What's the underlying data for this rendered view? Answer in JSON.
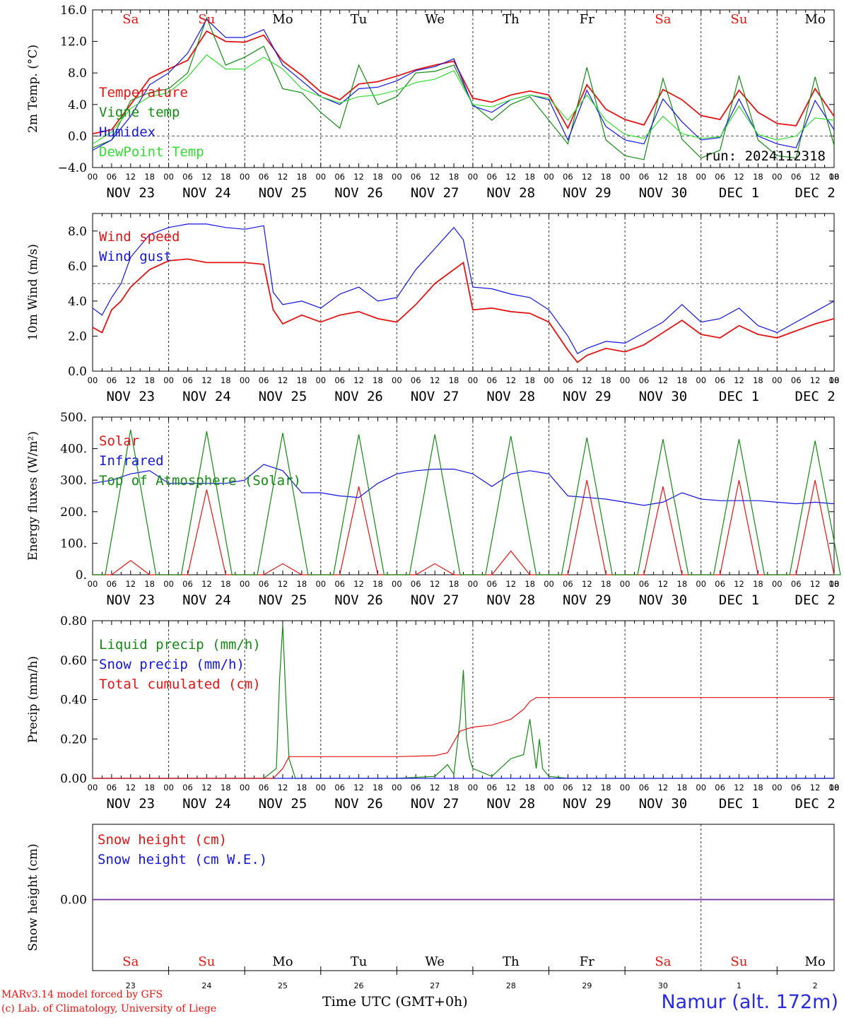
{
  "run_label": "run: 2024112318",
  "colors": {
    "red": "#e41414",
    "green": "#138a13",
    "blue": "#1414e4",
    "lime": "#33dd33",
    "purple": "#7030a0"
  },
  "days": [
    "Sa",
    "Su",
    "Mo",
    "Tu",
    "We",
    "Th",
    "Fr",
    "Sa",
    "Su",
    "Mo"
  ],
  "day_colors": [
    "#e41414",
    "#e41414",
    "#000000",
    "#000000",
    "#000000",
    "#000000",
    "#000000",
    "#e41414",
    "#e41414",
    "#000000"
  ],
  "dates": [
    "NOV 23",
    "NOV 24",
    "NOV 25",
    "NOV 26",
    "NOV 27",
    "NOV 28",
    "NOV 29",
    "NOV 30",
    "DEC  1",
    "DEC  2"
  ],
  "day_numbers": [
    "23",
    "24",
    "25",
    "26",
    "27",
    "28",
    "29",
    "30",
    "1",
    "2"
  ],
  "hour_ticks": [
    "00",
    "06",
    "12",
    "18"
  ],
  "footer": {
    "credit1": "MARv3.14 model forced by GFS",
    "credit2": "(c) Lab. of Climatology, University of Liege",
    "time_label": "Time UTC (GMT+0h)",
    "station": "Namur (alt. 172m)"
  },
  "chart_data": [
    {
      "type": "line",
      "ylabel": "2m Temp. (°C)",
      "ylim": [
        -4.0,
        16.0
      ],
      "yticks": [
        "16.0",
        "12.0",
        "8.0",
        "4.0",
        "0.0",
        "−4.0"
      ],
      "x_unit": "hours since NOV 23 00 UTC",
      "series": [
        {
          "name": "Temperature",
          "color": "#e41414",
          "x": [
            0,
            6,
            12,
            18,
            24,
            30,
            36,
            42,
            48,
            54,
            60,
            66,
            72,
            78,
            84,
            90,
            96,
            102,
            108,
            114,
            120,
            126,
            132,
            138,
            144,
            150,
            156,
            162,
            168,
            174,
            180,
            186,
            192,
            198,
            204,
            210,
            216,
            222,
            228,
            234
          ],
          "y": [
            0.3,
            0.8,
            4.0,
            7.3,
            8.5,
            9.6,
            13.3,
            12.0,
            11.9,
            12.8,
            9.5,
            7.7,
            5.6,
            4.6,
            6.6,
            6.9,
            7.6,
            8.4,
            9.0,
            9.5,
            4.8,
            4.3,
            5.2,
            5.7,
            5.2,
            1.0,
            6.5,
            3.4,
            2.1,
            1.4,
            5.9,
            4.6,
            2.6,
            2.1,
            5.8,
            3.0,
            1.6,
            1.3,
            6.0,
            2.5
          ]
        },
        {
          "name": "Vigne temp",
          "color": "#138a13",
          "x": [
            0,
            6,
            12,
            18,
            24,
            30,
            36,
            42,
            48,
            54,
            60,
            66,
            72,
            78,
            84,
            90,
            96,
            102,
            108,
            114,
            120,
            126,
            132,
            138,
            144,
            150,
            156,
            162,
            168,
            174,
            180,
            186,
            192,
            198,
            204,
            210,
            216,
            222,
            228,
            234
          ],
          "y": [
            -1.5,
            -0.5,
            4.5,
            5.5,
            6.0,
            8.0,
            15.0,
            9.0,
            10.0,
            11.4,
            6.0,
            5.5,
            3.0,
            1.0,
            9.0,
            4.0,
            5.0,
            8.0,
            8.2,
            9.0,
            4.0,
            2.0,
            4.0,
            5.0,
            2.0,
            -1.0,
            8.7,
            -0.5,
            -2.5,
            -3.0,
            7.3,
            -0.4,
            -2.8,
            -1.8,
            7.6,
            -0.5,
            -2.5,
            -2.8,
            7.5,
            -1.2
          ]
        },
        {
          "name": "Humidex",
          "color": "#1414e4",
          "x": [
            0,
            6,
            12,
            18,
            24,
            30,
            36,
            42,
            48,
            54,
            60,
            66,
            72,
            78,
            84,
            90,
            96,
            102,
            108,
            114,
            120,
            126,
            132,
            138,
            144,
            150,
            156,
            162,
            168,
            174,
            180,
            186,
            192,
            198,
            204,
            210,
            216,
            222,
            228,
            234
          ],
          "y": [
            -1.8,
            -0.5,
            2.5,
            6.5,
            8.0,
            10.5,
            14.8,
            12.5,
            12.5,
            13.5,
            9.0,
            7.0,
            5.0,
            4.0,
            6.0,
            6.2,
            7.0,
            8.3,
            8.8,
            9.8,
            3.8,
            3.0,
            4.6,
            5.2,
            4.6,
            -0.5,
            5.8,
            1.2,
            -0.5,
            -1.0,
            4.7,
            1.8,
            -0.5,
            -0.2,
            4.7,
            0.0,
            -1.0,
            -1.5,
            4.5,
            0.8
          ]
        },
        {
          "name": "DewPoint Temp",
          "color": "#33dd33",
          "x": [
            0,
            6,
            12,
            18,
            24,
            30,
            36,
            42,
            48,
            54,
            60,
            66,
            72,
            78,
            84,
            90,
            96,
            102,
            108,
            114,
            120,
            126,
            132,
            138,
            144,
            150,
            156,
            162,
            168,
            174,
            180,
            186,
            192,
            198,
            204,
            210,
            216,
            222,
            228,
            234
          ],
          "y": [
            -1.0,
            0.5,
            3.5,
            5.0,
            5.5,
            7.5,
            10.3,
            8.5,
            8.5,
            10.0,
            8.5,
            6.0,
            5.0,
            4.2,
            5.0,
            5.2,
            5.8,
            6.8,
            7.2,
            8.3,
            4.0,
            3.7,
            4.6,
            5.2,
            4.8,
            2.0,
            5.2,
            2.0,
            0.2,
            -0.3,
            2.5,
            0.3,
            -0.3,
            -0.1,
            3.8,
            0.2,
            -0.5,
            0.0,
            2.3,
            2.0
          ]
        }
      ]
    },
    {
      "type": "line",
      "ylabel": "10m Wind (m/s)",
      "ylim": [
        0,
        9
      ],
      "yticks": [
        "8.0",
        "6.0",
        "4.0",
        "2.0",
        "0.0"
      ],
      "series": [
        {
          "name": "Wind speed",
          "color": "#e41414",
          "x": [
            0,
            3,
            6,
            9,
            12,
            18,
            24,
            30,
            36,
            42,
            48,
            54,
            57,
            60,
            66,
            72,
            78,
            84,
            90,
            96,
            102,
            108,
            114,
            117,
            120,
            126,
            132,
            138,
            144,
            150,
            153,
            156,
            162,
            168,
            174,
            180,
            186,
            192,
            198,
            204,
            210,
            216,
            222,
            228,
            234
          ],
          "y": [
            2.5,
            2.2,
            3.5,
            4.0,
            4.8,
            5.8,
            6.3,
            6.4,
            6.2,
            6.2,
            6.2,
            6.1,
            3.5,
            2.7,
            3.2,
            2.8,
            3.2,
            3.4,
            3.0,
            2.8,
            3.8,
            5.0,
            5.8,
            6.2,
            3.5,
            3.6,
            3.4,
            3.3,
            2.8,
            1.2,
            0.5,
            0.9,
            1.3,
            1.1,
            1.5,
            2.2,
            2.9,
            2.1,
            1.9,
            2.6,
            2.1,
            1.9,
            2.3,
            2.7,
            3.0
          ]
        },
        {
          "name": "Wind gust",
          "color": "#1414e4",
          "x": [
            0,
            3,
            6,
            9,
            12,
            18,
            24,
            30,
            36,
            42,
            48,
            54,
            57,
            60,
            66,
            72,
            78,
            84,
            90,
            96,
            102,
            108,
            114,
            117,
            120,
            126,
            132,
            138,
            144,
            150,
            153,
            156,
            162,
            168,
            174,
            180,
            186,
            192,
            198,
            204,
            210,
            216,
            222,
            228,
            234
          ],
          "y": [
            3.6,
            3.2,
            4.2,
            5.0,
            6.5,
            7.8,
            8.2,
            8.4,
            8.4,
            8.2,
            8.1,
            8.3,
            4.5,
            3.8,
            4.0,
            3.6,
            4.4,
            4.8,
            4.0,
            4.2,
            5.8,
            7.0,
            8.2,
            7.5,
            4.8,
            4.7,
            4.4,
            4.2,
            3.5,
            2.0,
            1.0,
            1.3,
            1.7,
            1.6,
            2.2,
            2.8,
            3.8,
            2.8,
            3.0,
            3.6,
            2.6,
            2.2,
            2.8,
            3.4,
            4.0
          ]
        }
      ],
      "reference_line": 5.0
    },
    {
      "type": "line",
      "ylabel": "Energy fluxes (W/m²)",
      "ylim": [
        0,
        500
      ],
      "yticks": [
        "500.",
        "400.",
        "300.",
        "200.",
        "100.",
        "0."
      ],
      "series": [
        {
          "name": "Solar",
          "color": "#e41414",
          "peaks": [
            45,
            270,
            35,
            280,
            35,
            75,
            300,
            280,
            300,
            300
          ]
        },
        {
          "name": "Infrared",
          "color": "#1414e4",
          "x": [
            0,
            6,
            12,
            18,
            24,
            30,
            36,
            42,
            48,
            54,
            60,
            66,
            72,
            78,
            84,
            90,
            96,
            102,
            108,
            114,
            120,
            126,
            132,
            138,
            144,
            150,
            156,
            162,
            168,
            174,
            180,
            186,
            192,
            198,
            204,
            210,
            216,
            222,
            228,
            234
          ],
          "y": [
            290,
            300,
            320,
            330,
            290,
            290,
            290,
            290,
            300,
            350,
            330,
            260,
            260,
            250,
            245,
            290,
            320,
            330,
            335,
            335,
            320,
            280,
            320,
            330,
            320,
            250,
            245,
            240,
            230,
            220,
            230,
            260,
            240,
            235,
            235,
            235,
            230,
            225,
            230,
            225
          ]
        },
        {
          "name": "Top of Atmosphere (Solar)",
          "color": "#138a13",
          "peaks": [
            460,
            455,
            450,
            445,
            445,
            440,
            435,
            430,
            430,
            425
          ]
        }
      ]
    },
    {
      "type": "line",
      "ylabel": "Precip (mm/h)",
      "ylim": [
        0,
        0.8
      ],
      "yticks": [
        "0.80",
        "0.60",
        "0.40",
        "0.20",
        "0.00"
      ],
      "series": [
        {
          "name": "Liquid precip (mm/h)",
          "color": "#138a13",
          "x": [
            0,
            54,
            58,
            59,
            60,
            61,
            62,
            64,
            66,
            96,
            108,
            112,
            114,
            116,
            117,
            118,
            119,
            120,
            126,
            132,
            136,
            138,
            140,
            141,
            142,
            144,
            150,
            234
          ],
          "y": [
            0,
            0,
            0.05,
            0.5,
            0.78,
            0.4,
            0.1,
            0,
            0,
            0,
            0.01,
            0.07,
            0.02,
            0.3,
            0.55,
            0.2,
            0.1,
            0.05,
            0.01,
            0.1,
            0.12,
            0.3,
            0.05,
            0.2,
            0.05,
            0.01,
            0,
            0
          ]
        },
        {
          "name": "Snow precip (mm/h)",
          "color": "#1414e4",
          "x": [
            0,
            234
          ],
          "y": [
            0,
            0
          ]
        },
        {
          "name": "Total cumulated (cm)",
          "color": "#e41414",
          "x": [
            0,
            57,
            60,
            62,
            66,
            96,
            108,
            112,
            116,
            120,
            126,
            132,
            136,
            138,
            140,
            144,
            150,
            234
          ],
          "y": [
            0,
            0,
            0.05,
            0.11,
            0.11,
            0.11,
            0.115,
            0.13,
            0.24,
            0.26,
            0.27,
            0.3,
            0.35,
            0.39,
            0.41,
            0.41,
            0.41,
            0.41
          ]
        }
      ]
    },
    {
      "type": "line",
      "ylabel": "Snow height (cm)",
      "yticks": [
        "0.00"
      ],
      "series": [
        {
          "name": "Snow height (cm)",
          "color": "#e41414",
          "x": [
            0,
            234
          ],
          "y": [
            0,
            0
          ]
        },
        {
          "name": "Snow height (cm W.E.)",
          "color": "#1414e4",
          "x": [
            0,
            234
          ],
          "y": [
            0,
            0
          ]
        }
      ]
    }
  ]
}
